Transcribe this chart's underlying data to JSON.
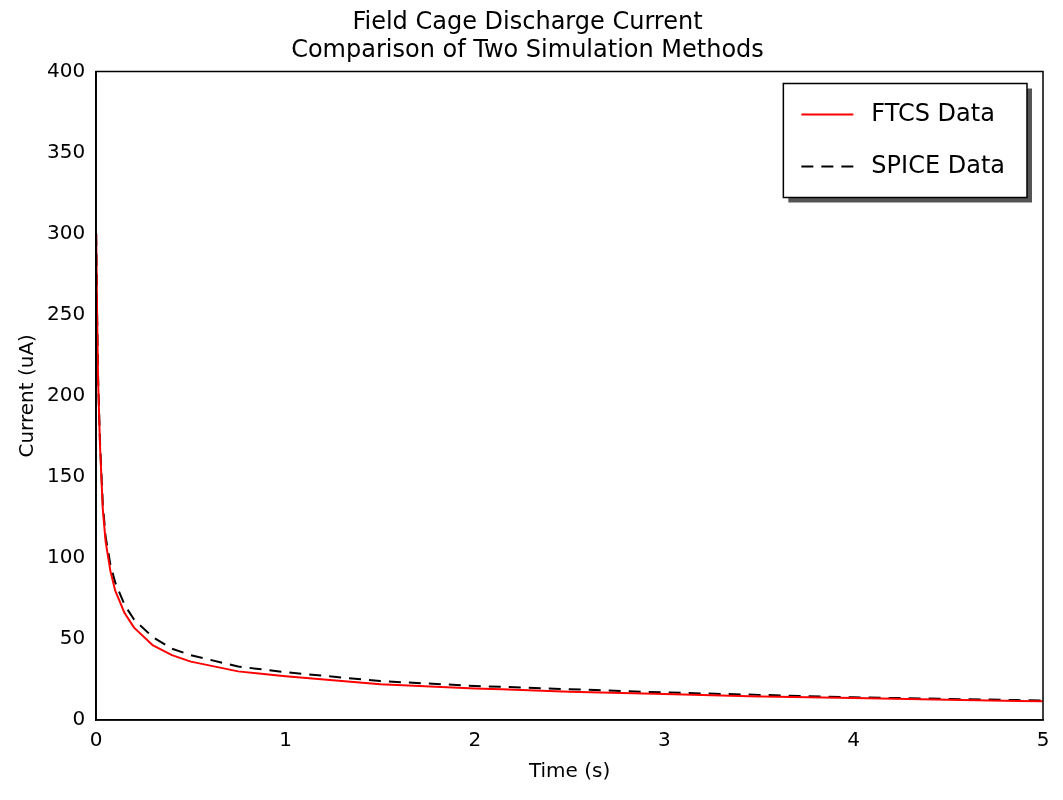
{
  "chart_data": {
    "type": "line",
    "title": [
      "Field Cage Discharge Current",
      "Comparison of Two Simulation Methods"
    ],
    "xlabel": "Time (s)",
    "ylabel": "Current (uA)",
    "xlim": [
      0,
      5
    ],
    "ylim": [
      0,
      400
    ],
    "xticks": [
      0,
      1,
      2,
      3,
      4,
      5
    ],
    "yticks": [
      0,
      50,
      100,
      150,
      200,
      250,
      300,
      350,
      400
    ],
    "grid": false,
    "legend": "top right",
    "marker": "none",
    "series": [
      {
        "name": "FTCS Data",
        "color": "#ff0000",
        "line_style": "solid",
        "x": [
          0,
          0.005,
          0.01,
          0.02,
          0.035,
          0.05,
          0.075,
          0.1,
          0.15,
          0.2,
          0.3,
          0.4,
          0.5,
          0.75,
          1,
          1.5,
          2,
          2.5,
          3,
          3.5,
          4,
          4.5,
          5
        ],
        "values": [
          300,
          250,
          210,
          170,
          130,
          110,
          92,
          80,
          66,
          57,
          46,
          40,
          36,
          30,
          27,
          22,
          19.5,
          17.5,
          16,
          14.5,
          13.5,
          12.5,
          11.5
        ]
      },
      {
        "name": "SPICE Data",
        "color": "#000000",
        "line_style": "dashed",
        "x": [
          0,
          0.005,
          0.01,
          0.02,
          0.035,
          0.05,
          0.075,
          0.1,
          0.15,
          0.2,
          0.3,
          0.4,
          0.5,
          0.75,
          1,
          1.5,
          2,
          2.5,
          3,
          3.5,
          4,
          4.5,
          5
        ],
        "values": [
          300,
          250,
          212,
          172,
          133,
          113,
          96,
          85,
          71,
          62,
          51,
          44,
          40,
          33,
          29.5,
          24,
          21,
          19,
          17,
          15.5,
          14,
          13,
          12
        ]
      }
    ]
  }
}
